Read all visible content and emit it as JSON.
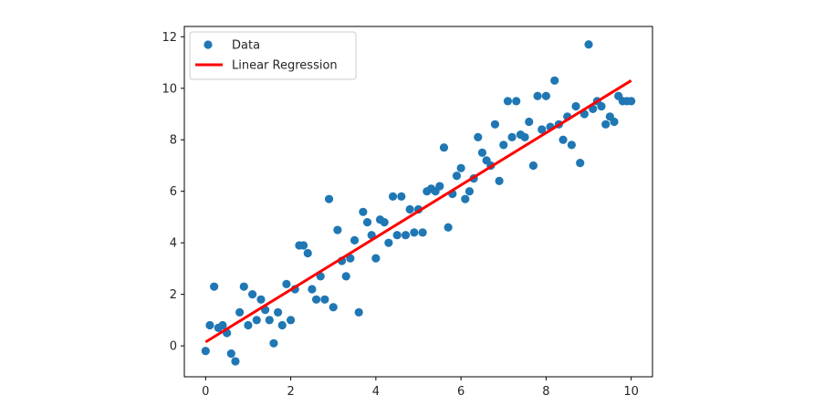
{
  "chart_data": {
    "type": "scatter",
    "title": "",
    "xlabel": "",
    "ylabel": "",
    "xlim": [
      -0.5,
      10.5
    ],
    "ylim": [
      -1.2,
      12.4
    ],
    "xticks": [
      0,
      2,
      4,
      6,
      8,
      10
    ],
    "yticks": [
      0,
      2,
      4,
      6,
      8,
      10,
      12
    ],
    "xtick_labels": [
      "0",
      "2",
      "4",
      "6",
      "8",
      "10"
    ],
    "ytick_labels": [
      "0",
      "2",
      "4",
      "6",
      "8",
      "10",
      "12"
    ],
    "grid": false,
    "legend_position": "upper-left",
    "series": [
      {
        "name": "Data",
        "kind": "scatter",
        "color": "#1f77b4",
        "x": [
          0.0,
          0.1,
          0.2,
          0.3,
          0.4,
          0.5,
          0.6,
          0.7,
          0.8,
          0.9,
          1.0,
          1.1,
          1.2,
          1.3,
          1.4,
          1.5,
          1.6,
          1.7,
          1.8,
          1.9,
          2.0,
          2.1,
          2.2,
          2.3,
          2.4,
          2.5,
          2.6,
          2.7,
          2.8,
          2.9,
          3.0,
          3.1,
          3.2,
          3.3,
          3.4,
          3.5,
          3.6,
          3.7,
          3.8,
          3.9,
          4.0,
          4.1,
          4.2,
          4.3,
          4.4,
          4.5,
          4.6,
          4.7,
          4.8,
          4.9,
          5.0,
          5.1,
          5.2,
          5.3,
          5.4,
          5.5,
          5.6,
          5.7,
          5.8,
          5.9,
          6.0,
          6.1,
          6.2,
          6.3,
          6.4,
          6.5,
          6.6,
          6.7,
          6.8,
          6.9,
          7.0,
          7.1,
          7.2,
          7.3,
          7.4,
          7.5,
          7.6,
          7.7,
          7.8,
          7.9,
          8.0,
          8.1,
          8.2,
          8.3,
          8.4,
          8.5,
          8.6,
          8.7,
          8.8,
          8.9,
          9.0,
          9.1,
          9.2,
          9.3,
          9.4,
          9.5,
          9.6,
          9.7,
          9.8,
          9.9,
          10.0
        ],
        "y": [
          -0.2,
          0.8,
          2.3,
          0.7,
          0.8,
          0.5,
          -0.3,
          -0.6,
          1.3,
          2.3,
          0.8,
          2.0,
          1.0,
          1.8,
          1.4,
          1.0,
          0.1,
          1.3,
          0.8,
          2.4,
          1.0,
          2.2,
          3.9,
          3.9,
          3.6,
          2.2,
          1.8,
          2.7,
          1.8,
          5.7,
          1.5,
          4.5,
          3.3,
          2.7,
          3.4,
          4.1,
          1.3,
          5.2,
          4.8,
          4.3,
          3.4,
          4.9,
          4.8,
          4.0,
          5.8,
          4.3,
          5.8,
          4.3,
          5.3,
          4.4,
          5.3,
          4.4,
          6.0,
          6.1,
          6.0,
          6.2,
          7.7,
          4.6,
          5.9,
          6.6,
          6.9,
          5.7,
          6.0,
          6.5,
          8.1,
          7.5,
          7.2,
          7.0,
          8.6,
          6.4,
          7.8,
          9.5,
          8.1,
          9.5,
          8.2,
          8.1,
          8.7,
          7.0,
          9.7,
          8.4,
          9.7,
          8.5,
          10.3,
          8.6,
          8.0,
          8.9,
          7.8,
          9.3,
          7.1,
          9.0,
          11.7,
          9.2,
          9.5,
          9.3,
          8.6,
          8.9,
          8.7,
          9.7,
          9.5,
          9.5,
          9.5
        ]
      },
      {
        "name": "Linear Regression",
        "kind": "line",
        "color": "#ff0000",
        "x": [
          0,
          10
        ],
        "y": [
          0.15,
          10.3
        ]
      }
    ]
  }
}
